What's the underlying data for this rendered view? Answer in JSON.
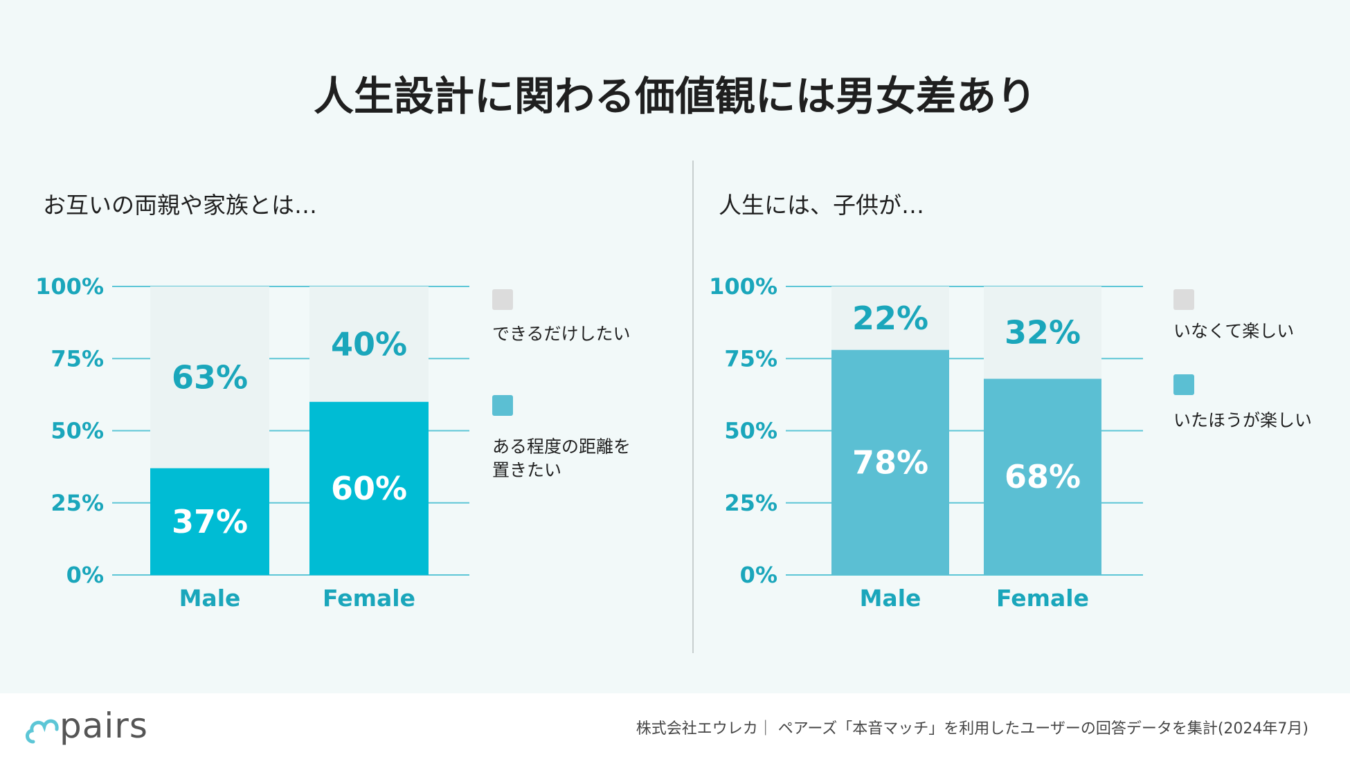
{
  "title": "人生設計に関わる価値観には男女差あり",
  "source": "株式会社エウレカ｜ ペアーズ「本音マッチ」を利用したユーザーの回答データを集計(2024年7月)",
  "logo_text": "pairs",
  "colors": {
    "light": "#ebf3f3",
    "cyan": "#00bcd4",
    "blue": "#5bbfd3",
    "axis": "#1aa6bb",
    "grid": "#5cc6d6",
    "swatch_gray": "#dcdcdc"
  },
  "chart_data": [
    {
      "type": "bar",
      "stacked": true,
      "title": "お互いの両親や家族とは…",
      "categories": [
        "Male",
        "Female"
      ],
      "yticks": [
        "100%",
        "75%",
        "50%",
        "25%",
        "0%"
      ],
      "ylim": [
        0,
        100
      ],
      "series": [
        {
          "name": "ある程度の距離を置きたい",
          "values": [
            37,
            60
          ],
          "labels": [
            "37%",
            "60%"
          ],
          "legend_label": [
            "ある程度の距離を",
            "置きたい"
          ]
        },
        {
          "name": "できるだけしたい",
          "values": [
            63,
            40
          ],
          "labels": [
            "63%",
            "40%"
          ],
          "legend_label": [
            "できるだけしたい"
          ]
        }
      ]
    },
    {
      "type": "bar",
      "stacked": true,
      "title": "人生には、子供が…",
      "categories": [
        "Male",
        "Female"
      ],
      "yticks": [
        "100%",
        "75%",
        "50%",
        "25%",
        "0%"
      ],
      "ylim": [
        0,
        100
      ],
      "series": [
        {
          "name": "いたほうが楽しい",
          "values": [
            78,
            68
          ],
          "labels": [
            "78%",
            "68%"
          ],
          "legend_label": [
            "いたほうが楽しい"
          ]
        },
        {
          "name": "いなくて楽しい",
          "values": [
            22,
            32
          ],
          "labels": [
            "22%",
            "32%"
          ],
          "legend_label": [
            "いなくて楽しい"
          ]
        }
      ]
    }
  ]
}
